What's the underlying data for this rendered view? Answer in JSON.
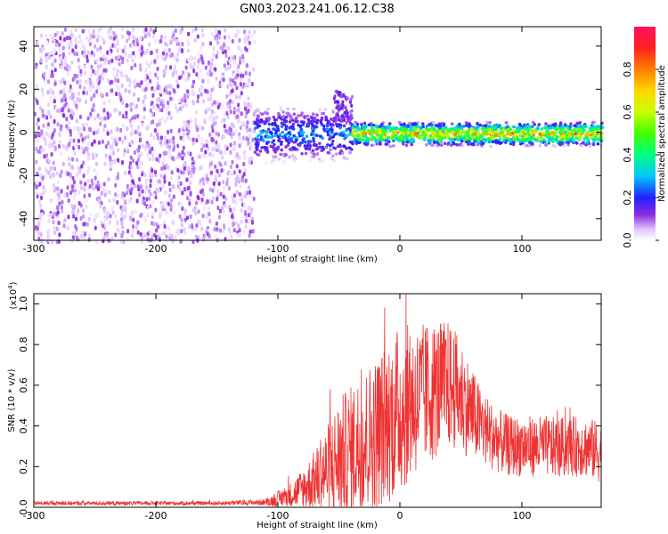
{
  "title": "GN03.2023.241.06.12.C38",
  "colors": {
    "snr_line": "#ee3333",
    "axis": "#000000"
  },
  "chart_data": [
    {
      "type": "heatmap",
      "xlabel": "Height of straight line (km)",
      "ylabel": "Frequency (Hz)",
      "xlim": [
        -300,
        165
      ],
      "ylim": [
        -50,
        49
      ],
      "xticks": [
        -300,
        -200,
        -100,
        0,
        100
      ],
      "yticks": [
        -40,
        -20,
        0,
        20,
        40
      ],
      "colorbar": {
        "label": "Normalized spectral amplitude",
        "range": [
          0,
          1
        ],
        "ticks": [
          0.0,
          0.2,
          0.4,
          0.6,
          0.8
        ],
        "colormap": "rainbow-purple-to-red"
      },
      "regions": [
        {
          "name": "noise",
          "x_range": [
            -300,
            -120
          ],
          "f_range": [
            -50,
            49
          ],
          "amplitude": 0.1
        },
        {
          "name": "noisy-onset",
          "x_range": [
            -120,
            -40
          ],
          "f_center": 0,
          "f_halfwidth": 7,
          "amplitude": 0.35
        },
        {
          "name": "burst",
          "x_range": [
            -55,
            -40
          ],
          "f_range": [
            5,
            20
          ],
          "amplitude": 0.15
        },
        {
          "name": "signal",
          "x_range": [
            -40,
            165
          ],
          "f_center": 0,
          "f_halfwidth": 3,
          "amplitude": 0.9
        }
      ]
    },
    {
      "type": "line",
      "xlabel": "Height of straight line (km)",
      "ylabel": "SNR (10 * v/v)",
      "yunit": "(x10",
      "yunit_exp": "4",
      "yunit_close": ")",
      "xlim": [
        -300,
        165
      ],
      "ylim": [
        0,
        1.05
      ],
      "xticks": [
        -300,
        -200,
        -100,
        0,
        100
      ],
      "yticks": [
        0.0,
        0.2,
        0.4,
        0.6,
        0.8,
        1.0
      ],
      "series": [
        {
          "x": [
            -300,
            -250,
            -200,
            -150,
            -110,
            -100,
            -90,
            -80,
            -70,
            -60,
            -50,
            -40,
            -30,
            -20,
            -10,
            0,
            10,
            20,
            30,
            40,
            50,
            60,
            70,
            80,
            90,
            100,
            110,
            120,
            130,
            140,
            150,
            160,
            165
          ],
          "y": [
            0.02,
            0.02,
            0.02,
            0.02,
            0.025,
            0.04,
            0.06,
            0.09,
            0.13,
            0.18,
            0.24,
            0.28,
            0.32,
            0.36,
            0.42,
            0.48,
            0.52,
            0.55,
            0.58,
            0.6,
            0.55,
            0.45,
            0.38,
            0.33,
            0.3,
            0.3,
            0.3,
            0.3,
            0.29,
            0.3,
            0.3,
            0.28,
            0.26
          ],
          "spread": [
            0.01,
            0.01,
            0.01,
            0.01,
            0.015,
            0.04,
            0.06,
            0.1,
            0.15,
            0.22,
            0.3,
            0.32,
            0.36,
            0.38,
            0.4,
            0.42,
            0.38,
            0.36,
            0.34,
            0.32,
            0.28,
            0.22,
            0.18,
            0.16,
            0.15,
            0.15,
            0.15,
            0.15,
            0.15,
            0.15,
            0.15,
            0.15,
            0.15
          ]
        }
      ]
    }
  ]
}
